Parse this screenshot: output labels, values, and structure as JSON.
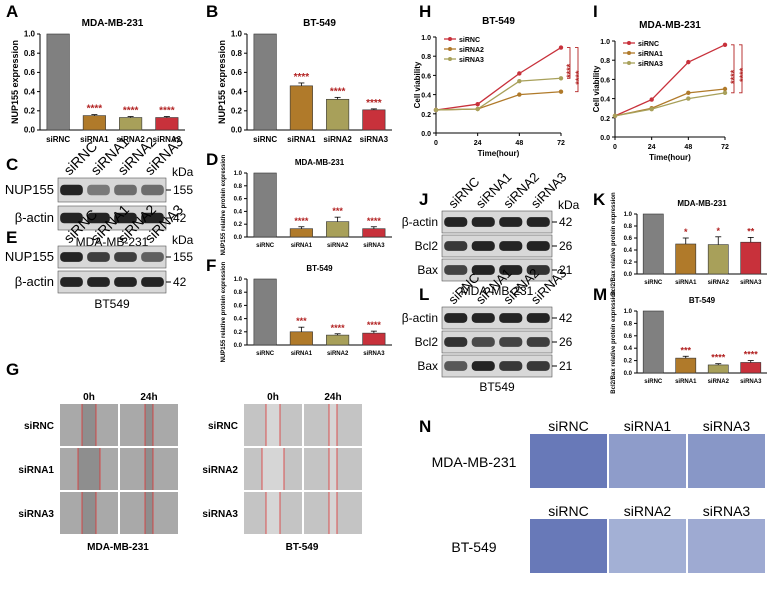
{
  "panel_labels": {
    "A": "A",
    "B": "B",
    "C": "C",
    "D": "D",
    "E": "E",
    "F": "F",
    "G": "G",
    "H": "H",
    "I": "I",
    "J": "J",
    "K": "K",
    "L": "L",
    "M": "M",
    "N": "N"
  },
  "colors": {
    "gray": "#808080",
    "orange": "#b07a2a",
    "olive": "#a8a05a",
    "red": "#c8313b",
    "sig": "#b22222",
    "blot": "#1a1a1a"
  },
  "chart_data": [
    {
      "id": "A",
      "type": "bar",
      "title": "MDA-MB-231",
      "ylabel": "NUP155 expression",
      "categories": [
        "siRNC",
        "siRNA1",
        "siRNA2",
        "siRNA3"
      ],
      "values": [
        1.0,
        0.15,
        0.13,
        0.13
      ],
      "errors": [
        0,
        0.01,
        0.01,
        0.01
      ],
      "sig": [
        "",
        "****",
        "****",
        "****"
      ],
      "ylim": [
        0,
        1.0
      ],
      "yticks": [
        "0.0",
        "0.2",
        "0.4",
        "0.6",
        "0.8",
        "1.0"
      ]
    },
    {
      "id": "B",
      "type": "bar",
      "title": "BT-549",
      "ylabel": "NUP155 expression",
      "categories": [
        "siRNC",
        "siRNA1",
        "siRNA2",
        "siRNA3"
      ],
      "values": [
        1.0,
        0.46,
        0.32,
        0.21
      ],
      "errors": [
        0,
        0.03,
        0.02,
        0.01
      ],
      "sig": [
        "",
        "****",
        "****",
        "****"
      ],
      "ylim": [
        0,
        1.0
      ],
      "yticks": [
        "0.0",
        "0.2",
        "0.4",
        "0.6",
        "0.8",
        "1.0"
      ]
    },
    {
      "id": "D",
      "type": "bar",
      "title": "MDA-MB-231",
      "ylabel": "NUP155 relative protein expression",
      "categories": [
        "siRNC",
        "siRNA1",
        "siRNA2",
        "siRNA3"
      ],
      "values": [
        1.0,
        0.13,
        0.24,
        0.13
      ],
      "errors": [
        0,
        0.03,
        0.07,
        0.03
      ],
      "sig": [
        "",
        "****",
        "***",
        "****"
      ],
      "ylim": [
        0,
        1.0
      ],
      "yticks": [
        "0.0",
        "0.2",
        "0.4",
        "0.6",
        "0.8",
        "1.0"
      ]
    },
    {
      "id": "F",
      "type": "bar",
      "title": "BT-549",
      "ylabel": "NUP155 relative protein expression",
      "categories": [
        "siRNC",
        "siRNA1",
        "siRNA2",
        "siRNA3"
      ],
      "values": [
        1.0,
        0.2,
        0.15,
        0.18
      ],
      "errors": [
        0,
        0.07,
        0.02,
        0.03
      ],
      "sig": [
        "",
        "***",
        "****",
        "****"
      ],
      "ylim": [
        0,
        1.0
      ],
      "yticks": [
        "0.0",
        "0.2",
        "0.4",
        "0.6",
        "0.8",
        "1.0"
      ]
    },
    {
      "id": "K",
      "type": "bar",
      "title": "MDA-MB-231",
      "ylabel": "Bcl2/Bax relative protein expression",
      "categories": [
        "siRNC",
        "siRNA1",
        "siRNA2",
        "siRNA3"
      ],
      "values": [
        1.0,
        0.5,
        0.49,
        0.53
      ],
      "errors": [
        0,
        0.1,
        0.13,
        0.08
      ],
      "sig": [
        "",
        "*",
        "*",
        "**"
      ],
      "ylim": [
        0,
        1.0
      ],
      "yticks": [
        "0.0",
        "0.2",
        "0.4",
        "0.6",
        "0.8",
        "1.0"
      ]
    },
    {
      "id": "M",
      "type": "bar",
      "title": "BT-549",
      "ylabel": "Bcl2/Bax relative protein expression",
      "categories": [
        "siRNC",
        "siRNA1",
        "siRNA2",
        "siRNA3"
      ],
      "values": [
        1.0,
        0.24,
        0.13,
        0.17
      ],
      "errors": [
        0,
        0.03,
        0.02,
        0.03
      ],
      "sig": [
        "",
        "***",
        "****",
        "****"
      ],
      "ylim": [
        0,
        1.0
      ],
      "yticks": [
        "0.0",
        "0.2",
        "0.4",
        "0.6",
        "0.8",
        "1.0"
      ]
    },
    {
      "id": "H",
      "type": "line",
      "title": "BT-549",
      "xlabel": "Time(hour)",
      "ylabel": "Cell viability",
      "x": [
        0,
        24,
        48,
        72
      ],
      "xticks": [
        "0",
        "24",
        "48",
        "72"
      ],
      "ylim": [
        0,
        1.0
      ],
      "yticks": [
        "0.0",
        "0.2",
        "0.4",
        "0.6",
        "0.8",
        "1.0"
      ],
      "sig": "****",
      "series": [
        {
          "name": "siRNC",
          "values": [
            0.24,
            0.3,
            0.62,
            0.89
          ]
        },
        {
          "name": "siRNA2",
          "values": [
            0.24,
            0.25,
            0.4,
            0.43
          ]
        },
        {
          "name": "siRNA3",
          "values": [
            0.24,
            0.25,
            0.54,
            0.57
          ]
        }
      ]
    },
    {
      "id": "I",
      "type": "line",
      "title": "MDA-MB-231",
      "xlabel": "Time(hour)",
      "ylabel": "Cell viability",
      "x": [
        0,
        24,
        48,
        72
      ],
      "xticks": [
        "0",
        "24",
        "48",
        "72"
      ],
      "ylim": [
        0,
        1.0
      ],
      "yticks": [
        "0.0",
        "0.2",
        "0.4",
        "0.6",
        "0.8",
        "1.0"
      ],
      "sig": "****",
      "series": [
        {
          "name": "siRNC",
          "values": [
            0.22,
            0.39,
            0.78,
            0.96
          ]
        },
        {
          "name": "siRNA1",
          "values": [
            0.22,
            0.3,
            0.46,
            0.5
          ]
        },
        {
          "name": "siRNA3",
          "values": [
            0.22,
            0.29,
            0.4,
            0.46
          ]
        }
      ]
    }
  ],
  "blots": {
    "C": {
      "lanes": [
        "siRNC",
        "siRNA1",
        "siRNA2",
        "siRNA3"
      ],
      "unit": "kDa",
      "rows": [
        {
          "name": "NUP155",
          "kda": "155"
        },
        {
          "name": "β-actin",
          "kda": "42"
        }
      ],
      "caption": "MDA-MB-231"
    },
    "E": {
      "lanes": [
        "siRNC",
        "siRNA1",
        "siRNA2",
        "siRNA3"
      ],
      "unit": "kDa",
      "rows": [
        {
          "name": "NUP155",
          "kda": "155"
        },
        {
          "name": "β-actin",
          "kda": "42"
        }
      ],
      "caption": "BT549"
    },
    "J": {
      "lanes": [
        "siRNC",
        "siRNA1",
        "siRNA2",
        "siRNA3"
      ],
      "unit": "kDa",
      "rows": [
        {
          "name": "β-actin",
          "kda": "42"
        },
        {
          "name": "Bcl2",
          "kda": "26"
        },
        {
          "name": "Bax",
          "kda": "21"
        }
      ],
      "caption": "MDA-MB-231"
    },
    "L": {
      "lanes": [
        "siRNC",
        "siRNA1",
        "siRNA2",
        "siRNA3"
      ],
      "unit": "",
      "rows": [
        {
          "name": "β-actin",
          "kda": "42"
        },
        {
          "name": "Bcl2",
          "kda": "26"
        },
        {
          "name": "Bax",
          "kda": "21"
        }
      ],
      "caption": "BT549"
    }
  },
  "wound": {
    "left": {
      "cols": [
        "0h",
        "24h"
      ],
      "rows": [
        "siRNC",
        "siRNA1",
        "siRNA3"
      ],
      "caption": "MDA-MB-231"
    },
    "right": {
      "cols": [
        "0h",
        "24h"
      ],
      "rows": [
        "siRNC",
        "siRNA2",
        "siRNA3"
      ],
      "caption": "BT-549"
    }
  },
  "transwell": {
    "rows": [
      {
        "name": "MDA-MB-231",
        "cols": [
          "siRNC",
          "siRNA1",
          "siRNA3"
        ]
      },
      {
        "name": "BT-549",
        "cols": [
          "siRNC",
          "siRNA2",
          "siRNA3"
        ]
      }
    ]
  }
}
